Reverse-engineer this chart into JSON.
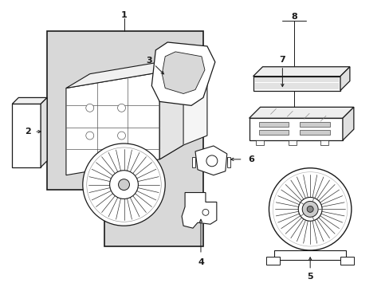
{
  "bg_color": "#ffffff",
  "line_color": "#1a1a1a",
  "gray_fill": "#d8d8d8",
  "fig_width": 4.89,
  "fig_height": 3.6,
  "dpi": 100,
  "title_font": 8,
  "label_font": 8
}
